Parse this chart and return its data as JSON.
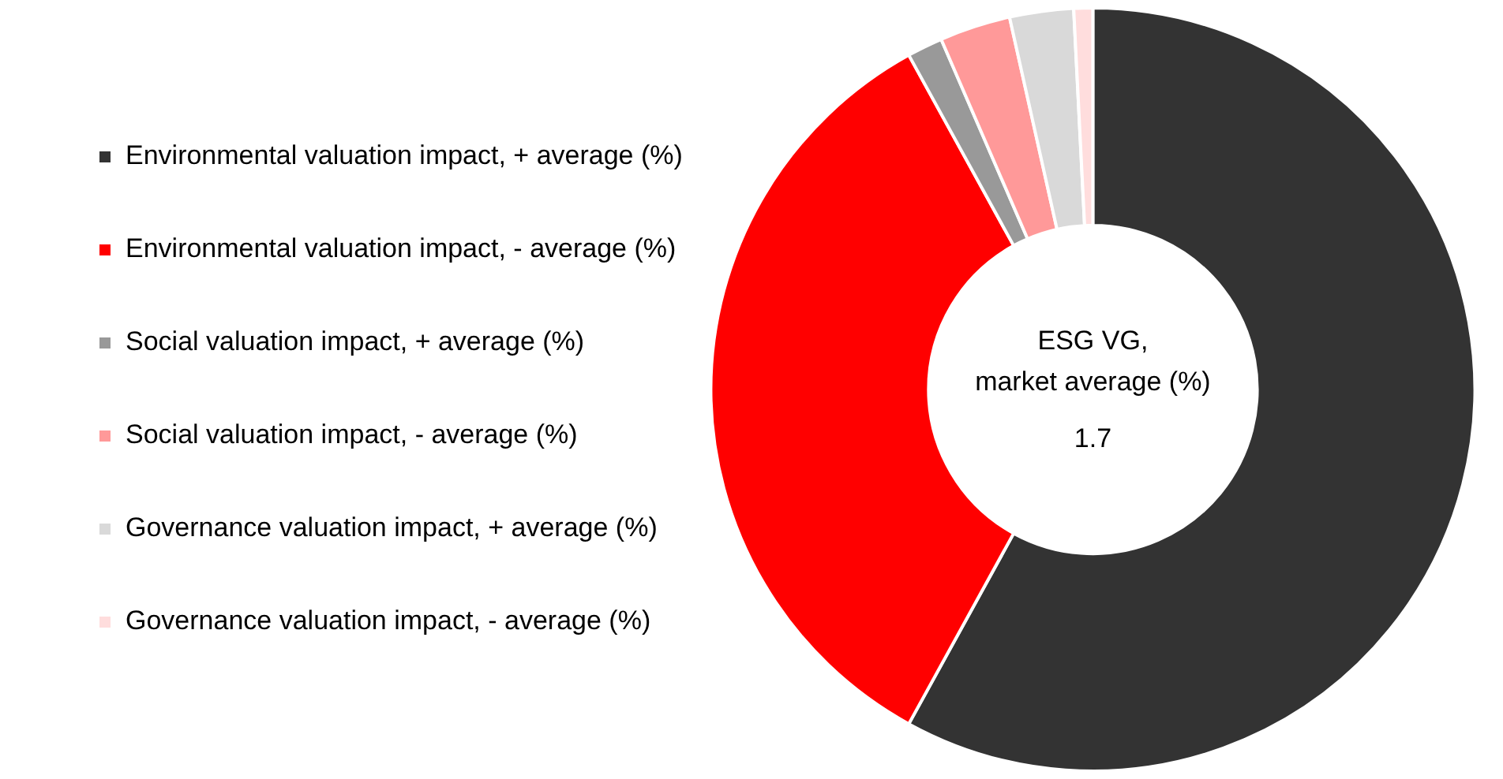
{
  "chart_data": {
    "type": "donut",
    "categories": [
      "Environmental valuation impact, + average (%)",
      "Environmental valuation impact, - average (%)",
      "Social valuation impact, + average (%)",
      "Social valuation impact, - average (%)",
      "Governance valuation impact, + average (%)",
      "Governance valuation impact, - average (%)"
    ],
    "values": [
      58,
      34,
      1.5,
      3,
      2.7,
      0.8
    ],
    "colors": [
      "#333333",
      "#ff0000",
      "#999999",
      "#ff9999",
      "#d9d9d9",
      "#ffdddd"
    ],
    "annotations": [
      "ESG VG,",
      "market average (%)",
      "1.7"
    ],
    "legend": "left"
  }
}
